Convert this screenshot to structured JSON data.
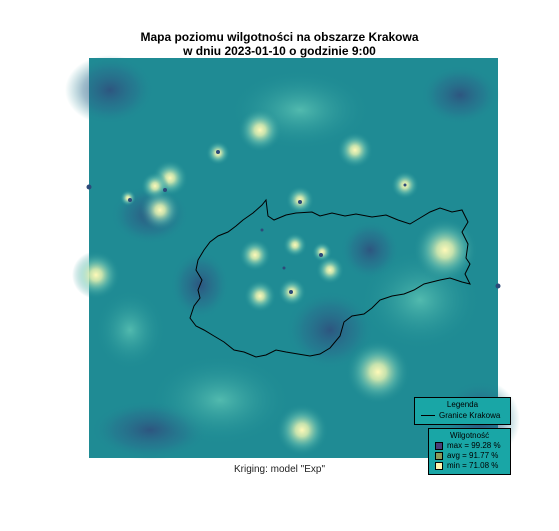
{
  "title_line1": "Mapa poziomu wilgotności na obszarze Krakowa",
  "title_line2": "w dniu 2023-01-10 o godzinie 9:00",
  "caption": "Kriging: model \"Exp\"",
  "legend": {
    "title": "Legenda",
    "boundary_label": "Granice Krakowa",
    "humidity_title": "Wilgotność",
    "max_label": "max =  99.28 %",
    "avg_label": "avg =  91.77 %",
    "min_label": "min =  71.08 %"
  },
  "colors": {
    "base": "#1d8d94",
    "max": "#4a3f7a",
    "avg": "#8a9a5b",
    "min": "#fff7b0",
    "boundary": "#000000"
  }
}
